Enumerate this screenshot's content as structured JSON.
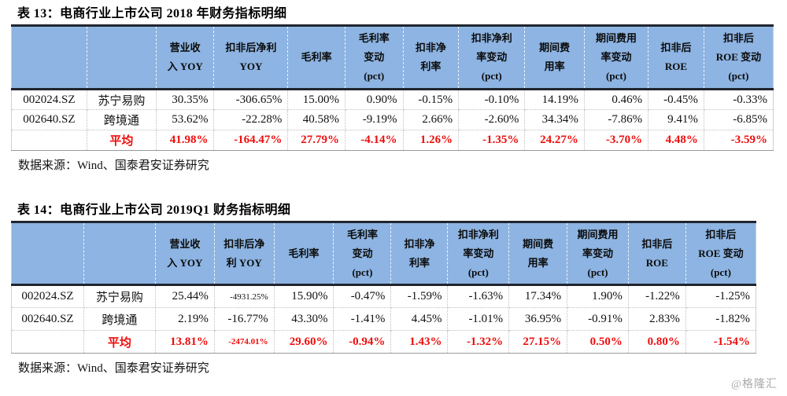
{
  "page": {
    "watermark": "@格隆汇"
  },
  "colors": {
    "header_bg": "#8db4e2",
    "border_dark": "#20252f",
    "average_red": "#ee0d0d",
    "watermark_gray": "#a9a9a9"
  },
  "tables": [
    {
      "title": "表 13：电商行业上市公司 2018 年财务指标明细",
      "headers": [
        "",
        "",
        "营业收\n入 YOY",
        "扣非后净利\nYOY",
        "毛利率",
        "毛利率\n变动\n(pct)",
        "扣非净\n利率",
        "扣非净利\n率变动\n(pct)",
        "期间费\n用率",
        "期间费用\n率变动\n(pct)",
        "扣非后\nROE",
        "扣非后\nROE 变动\n(pct)"
      ],
      "rows": [
        {
          "code": "002024.SZ",
          "name": "苏宁易购",
          "values": [
            "30.35%",
            "-306.65%",
            "15.00%",
            "0.90%",
            "-0.15%",
            "-0.10%",
            "14.19%",
            "0.46%",
            "-0.45%",
            "-0.33%"
          ]
        },
        {
          "code": "002640.SZ",
          "name": "跨境通",
          "values": [
            "53.62%",
            "-22.28%",
            "40.58%",
            "-9.19%",
            "2.66%",
            "-2.60%",
            "34.34%",
            "-7.86%",
            "9.41%",
            "-6.85%"
          ]
        }
      ],
      "average_row": {
        "code": "",
        "name": "平均",
        "values": [
          "41.98%",
          "-164.47%",
          "27.79%",
          "-4.14%",
          "1.26%",
          "-1.35%",
          "24.27%",
          "-3.70%",
          "4.48%",
          "-3.59%"
        ]
      },
      "source": "数据来源：Wind、国泰君安证券研究"
    },
    {
      "title": "表 14：电商行业上市公司 2019Q1 财务指标明细",
      "headers": [
        "",
        "",
        "营业收\n入 YOY",
        "扣非后净\n利 YOY",
        "毛利率",
        "毛利率\n变动\n(pct)",
        "扣非净\n利率",
        "扣非净利\n率变动\n(pct)",
        "期间费\n用率",
        "期间费用\n率变动\n(pct)",
        "扣非后\nROE",
        "扣非后\nROE 变动\n(pct)"
      ],
      "rows": [
        {
          "code": "002024.SZ",
          "name": "苏宁易购",
          "values": [
            "25.44%",
            "-4931.25%",
            "15.90%",
            "-0.47%",
            "-1.59%",
            "-1.63%",
            "17.34%",
            "1.90%",
            "-1.22%",
            "-1.25%"
          ]
        },
        {
          "code": "002640.SZ",
          "name": "跨境通",
          "values": [
            "2.19%",
            "-16.77%",
            "43.30%",
            "-1.41%",
            "4.45%",
            "-1.01%",
            "36.95%",
            "-0.91%",
            "2.83%",
            "-1.82%"
          ]
        }
      ],
      "average_row": {
        "code": "",
        "name": "平均",
        "values": [
          "13.81%",
          "-2474.01%",
          "29.60%",
          "-0.94%",
          "1.43%",
          "-1.32%",
          "27.15%",
          "0.50%",
          "0.80%",
          "-1.54%"
        ]
      },
      "source": "数据来源：Wind、国泰君安证券研究"
    }
  ]
}
